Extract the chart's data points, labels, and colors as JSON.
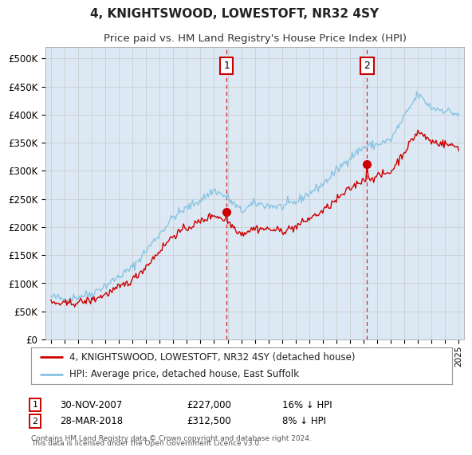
{
  "title": "4, KNIGHTSWOOD, LOWESTOFT, NR32 4SY",
  "subtitle": "Price paid vs. HM Land Registry's House Price Index (HPI)",
  "legend_line1": "4, KNIGHTSWOOD, LOWESTOFT, NR32 4SY (detached house)",
  "legend_line2": "HPI: Average price, detached house, East Suffolk",
  "sale1_date": "30-NOV-2007",
  "sale1_price": "£227,000",
  "sale1_hpi": "16% ↓ HPI",
  "sale1_year": 2007.92,
  "sale1_value": 227000,
  "sale2_date": "28-MAR-2018",
  "sale2_price": "£312,500",
  "sale2_hpi": "8% ↓ HPI",
  "sale2_year": 2018.25,
  "sale2_value": 312500,
  "footnote1": "Contains HM Land Registry data © Crown copyright and database right 2024.",
  "footnote2": "This data is licensed under the Open Government Licence v3.0.",
  "plot_bg_color": "#dce9f5",
  "hpi_color": "#89c4e1",
  "price_color": "#cc0000",
  "vline_color": "#cc0000",
  "ylim_max": 520000,
  "yticks": [
    0,
    50000,
    100000,
    150000,
    200000,
    250000,
    300000,
    350000,
    400000,
    450000,
    500000
  ],
  "xlim_start": 1994.6,
  "xlim_end": 2025.4
}
